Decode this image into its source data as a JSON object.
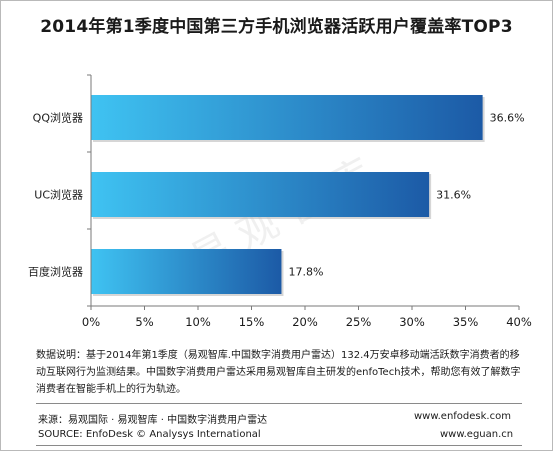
{
  "title": "2014年第1季度中国第三方手机浏览器活跃用户覆盖率TOP3",
  "chart_data": {
    "type": "bar",
    "orientation": "horizontal",
    "categories": [
      "QQ浏览器",
      "UC浏览器",
      "百度浏览器"
    ],
    "values": [
      36.6,
      31.6,
      17.8
    ],
    "value_labels": [
      "36.6%",
      "31.6%",
      "17.8%"
    ],
    "xlim": [
      0,
      40
    ],
    "x_ticks": [
      0,
      5,
      10,
      15,
      20,
      25,
      30,
      35,
      40
    ],
    "x_tick_labels": [
      "0%",
      "5%",
      "10%",
      "15%",
      "20%",
      "25%",
      "30%",
      "35%",
      "40%"
    ],
    "grid": false,
    "bar_color_start": "#3fc3f2",
    "bar_color_end": "#1c5aa6"
  },
  "watermark": "易 观 智 库",
  "description": "数据说明：基于2014年第1季度（易观智库.中国数字消费用户雷达）132.4万安卓移动端活跃数字消费者的移动互联网行为监测结果。中国数字消费用户雷达采用易观智库自主研发的enfoTech技术，帮助您有效了解数字消费者在智能手机上的行为轨迹。",
  "footer": {
    "source_cn": "来源：易观国际 · 易观智库 · 中国数字消费用户雷达",
    "source_en": "SOURCE: EnfoDesk © Analysys International",
    "url1": "www.enfodesk.com",
    "url2": "www.eguan.cn"
  }
}
